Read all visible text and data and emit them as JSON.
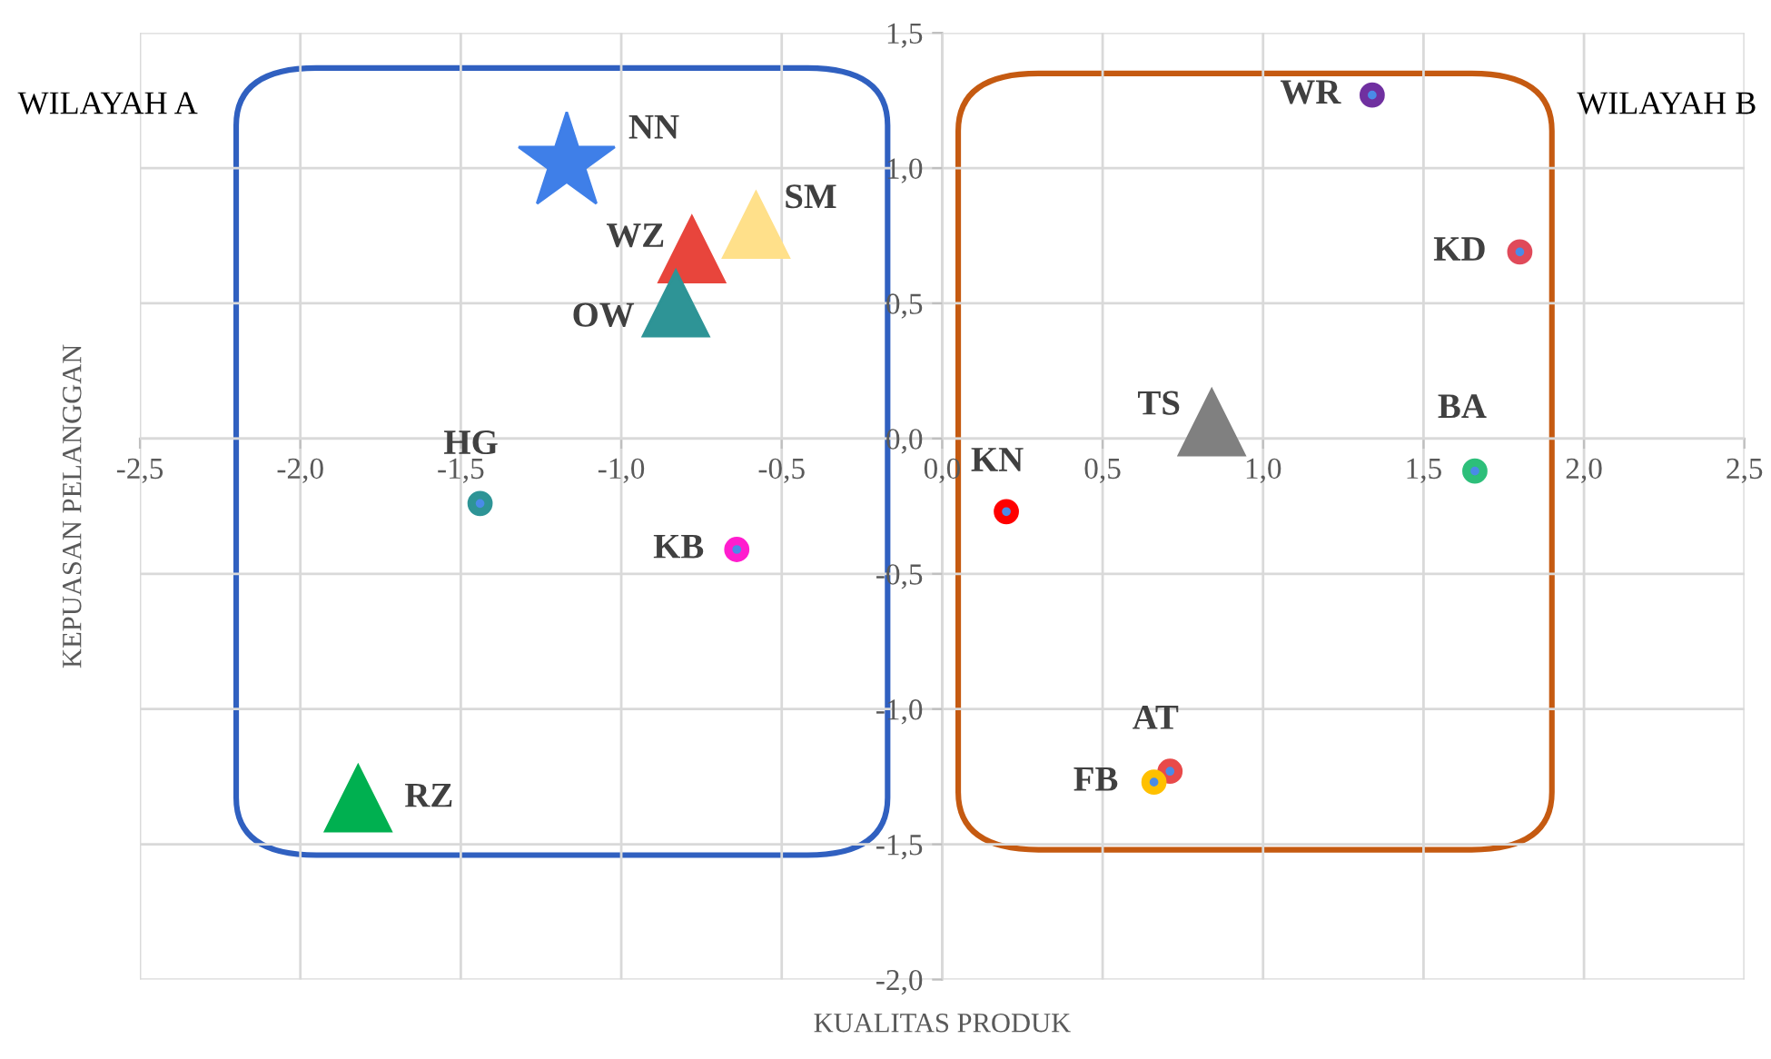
{
  "chart_data": {
    "type": "scatter",
    "xlabel": "KUALITAS PRODUK",
    "ylabel": "KEPUASAN PELANGGAN",
    "annotations": [
      "WILAYAH A",
      "WILAYAH B"
    ],
    "xlim": [
      -2.5,
      2.5
    ],
    "xticks": [
      {
        "value": -2.5,
        "label": "-2,5"
      },
      {
        "value": -2.0,
        "label": "-2,0"
      },
      {
        "value": -1.5,
        "label": "-1,5"
      },
      {
        "value": -1.0,
        "label": "-1,0"
      },
      {
        "value": -0.5,
        "label": "-0,5"
      },
      {
        "value": 0.0,
        "label": "0,0"
      },
      {
        "value": 0.5,
        "label": "0,5"
      },
      {
        "value": 1.0,
        "label": "1,0"
      },
      {
        "value": 1.5,
        "label": "1,5"
      },
      {
        "value": 2.0,
        "label": "2,0"
      },
      {
        "value": 2.5,
        "label": "2,5"
      }
    ],
    "ylim": [
      -2.0,
      1.5
    ],
    "yticks": [
      {
        "value": -2.0,
        "label": "-2,0"
      },
      {
        "value": -1.5,
        "label": "-1,5"
      },
      {
        "value": -1.0,
        "label": "-1,0"
      },
      {
        "value": -0.5,
        "label": "-0,5"
      },
      {
        "value": 0.0,
        "label": "0,0"
      },
      {
        "value": 0.5,
        "label": "0,5"
      },
      {
        "value": 1.0,
        "label": "1,0"
      },
      {
        "value": 1.5,
        "label": "1,5"
      }
    ],
    "grid": true,
    "legend": false,
    "series": [
      {
        "name": "NN",
        "color": "#3f7fe8",
        "marker": "star",
        "x": [
          -1.17
        ],
        "values": [
          1.02
        ]
      },
      {
        "name": "SM",
        "color": "#ffe08a",
        "marker": "triangle",
        "x": [
          -0.58
        ],
        "values": [
          0.79
        ]
      },
      {
        "name": "WZ",
        "color": "#e8453c",
        "marker": "triangle",
        "x": [
          -0.78
        ],
        "values": [
          0.7
        ]
      },
      {
        "name": "OW",
        "color": "#2e9496",
        "marker": "triangle",
        "x": [
          -0.83
        ],
        "values": [
          0.5
        ]
      },
      {
        "name": "HG",
        "color": "#2e9496",
        "marker": "circle",
        "x": [
          -1.44
        ],
        "values": [
          -0.24
        ]
      },
      {
        "name": "KB",
        "color": "#ff1dce",
        "marker": "circle",
        "x": [
          -0.64
        ],
        "values": [
          -0.41
        ]
      },
      {
        "name": "RZ",
        "color": "#00b050",
        "marker": "triangle",
        "x": [
          -1.82
        ],
        "values": [
          -1.33
        ]
      },
      {
        "name": "WR",
        "color": "#7030a0",
        "marker": "circle",
        "x": [
          1.34
        ],
        "values": [
          1.27
        ]
      },
      {
        "name": "KD",
        "color": "#e04a5a",
        "marker": "circle",
        "x": [
          1.8
        ],
        "values": [
          0.69
        ]
      },
      {
        "name": "TS",
        "color": "#808080",
        "marker": "triangle",
        "x": [
          0.84
        ],
        "values": [
          0.06
        ]
      },
      {
        "name": "BA",
        "color": "#2dbf7a",
        "marker": "circle",
        "x": [
          1.66
        ],
        "values": [
          -0.12
        ]
      },
      {
        "name": "KN",
        "color": "#ff0000",
        "marker": "circle",
        "x": [
          0.2
        ],
        "values": [
          -0.27
        ]
      },
      {
        "name": "AT",
        "color": "#e84a4a",
        "marker": "circle",
        "x": [
          0.71
        ],
        "values": [
          -1.23
        ]
      },
      {
        "name": "FB",
        "color": "#ffc000",
        "marker": "circle",
        "x": [
          0.66
        ],
        "values": [
          -1.27
        ]
      }
    ]
  }
}
